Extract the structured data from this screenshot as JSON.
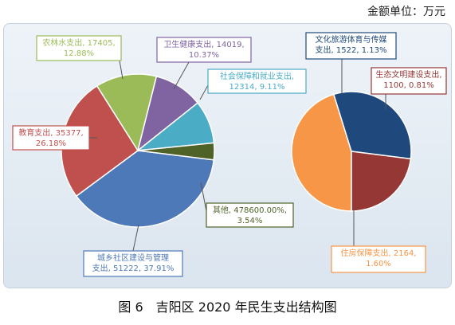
{
  "unit_note": "金额单位：万元",
  "caption": "图 6　吉阳区 2020 年民生支出结构图",
  "chart_data": [
    {
      "type": "pie",
      "slices": [
        {
          "label": "城乡社区建设与管理支出",
          "value": 51222,
          "percent_text": "37.91%",
          "display_value": "51222",
          "color": "#4e79b8"
        },
        {
          "label": "教育支出",
          "value": 35377,
          "percent_text": "26.18%",
          "display_value": "35377",
          "color": "#c0504d"
        },
        {
          "label": "农林水支出",
          "value": 17405,
          "percent_text": "12.88%",
          "display_value": "17405",
          "color": "#9bbb59"
        },
        {
          "label": "卫生健康支出",
          "value": 14019,
          "percent_text": "10.37%",
          "display_value": "14019",
          "color": "#8064a2"
        },
        {
          "label": "社会保障和就业支出",
          "value": 12314,
          "percent_text": "9.11%",
          "display_value": "12314",
          "color": "#4bacc6"
        },
        {
          "label": "其他",
          "value": 4786,
          "percent_text": "3.54%",
          "display_value": "478600.00%",
          "color": "#4f6228"
        }
      ]
    },
    {
      "type": "pie",
      "slices": [
        {
          "label": "住房保障支出",
          "value": 2164,
          "percent_text": "1.60%",
          "display_value": "2164",
          "color": "#f79646"
        },
        {
          "label": "文化旅游体育与传媒支出",
          "value": 1522,
          "percent_text": "1.13%",
          "display_value": "1522",
          "color": "#1f497d"
        },
        {
          "label": "生态文明建设支出",
          "value": 1100,
          "percent_text": "0.81%",
          "display_value": "1100",
          "color": "#953735"
        }
      ]
    }
  ],
  "callouts": [
    {
      "lines": [
        "农林水支出, 17405,",
        "12.88%"
      ],
      "color": "#9bbb59"
    },
    {
      "lines": [
        "卫生健康支出, 14019,",
        "10.37%"
      ],
      "color": "#8064a2"
    },
    {
      "lines": [
        "社会保障和就业支出,",
        "12314, 9.11%"
      ],
      "color": "#4bacc6"
    },
    {
      "lines": [
        "教育支出, 35377,",
        "26.18%"
      ],
      "color": "#c0504d"
    },
    {
      "lines": [
        "其他, 478600.00%,",
        "3.54%"
      ],
      "color": "#4f6228"
    },
    {
      "lines": [
        "城乡社区建设与管理",
        "支出, 51222, 37.91%"
      ],
      "color": "#4e79b8"
    },
    {
      "lines": [
        "文化旅游体育与传媒",
        "支出, 1522, 1.13%"
      ],
      "color": "#1f497d"
    },
    {
      "lines": [
        "生态文明建设支出,",
        "1100, 0.81%"
      ],
      "color": "#953735"
    },
    {
      "lines": [
        "住房保障支出, 2164,",
        "1.60%"
      ],
      "color": "#f79646"
    }
  ]
}
